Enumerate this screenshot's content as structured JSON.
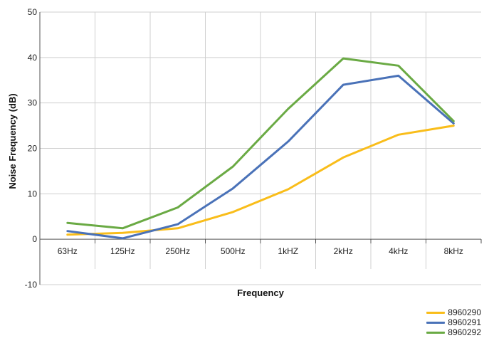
{
  "chart_data": {
    "type": "line",
    "categories": [
      "63Hz",
      "125Hz",
      "250Hz",
      "500Hz",
      "1kHZ",
      "2kHz",
      "4kHz",
      "8kHz"
    ],
    "series": [
      {
        "name": "8960290",
        "color": "#f9bd1a",
        "values": [
          1.0,
          1.4,
          2.4,
          6.0,
          11.0,
          18.0,
          23.0,
          25.0
        ]
      },
      {
        "name": "8960291",
        "color": "#4a72b8",
        "values": [
          1.8,
          0.2,
          3.3,
          11.2,
          21.5,
          34.0,
          36.0,
          25.5
        ]
      },
      {
        "name": "8960292",
        "color": "#6aaa44",
        "values": [
          3.6,
          2.4,
          7.0,
          16.0,
          28.7,
          39.8,
          38.2,
          26.0
        ]
      }
    ],
    "xlabel": "Frequency",
    "ylabel": "Noise Frequency (dB)",
    "ylim": [
      -10,
      50
    ],
    "yticks": [
      -10,
      0,
      10,
      20,
      30,
      40,
      50
    ],
    "grid": true,
    "legend_position": "bottom-right"
  }
}
